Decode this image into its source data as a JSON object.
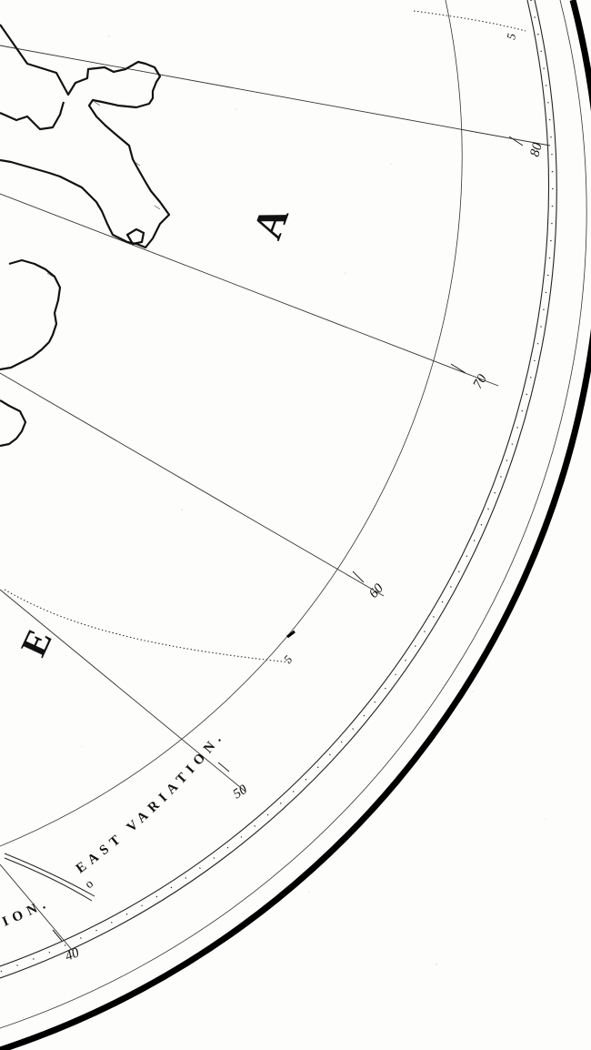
{
  "map": {
    "region_letters": [
      "A",
      "E"
    ],
    "variation_label": "EAST VARIATION.",
    "variation_label_partial": "ION.",
    "variation_zero": "o",
    "degree_labels": [
      "80",
      "70",
      "60",
      "50",
      "40"
    ],
    "variation_marks": [
      "5",
      "5"
    ],
    "colors": {
      "ink": "#111111",
      "paper": "#fdfdfc"
    }
  }
}
